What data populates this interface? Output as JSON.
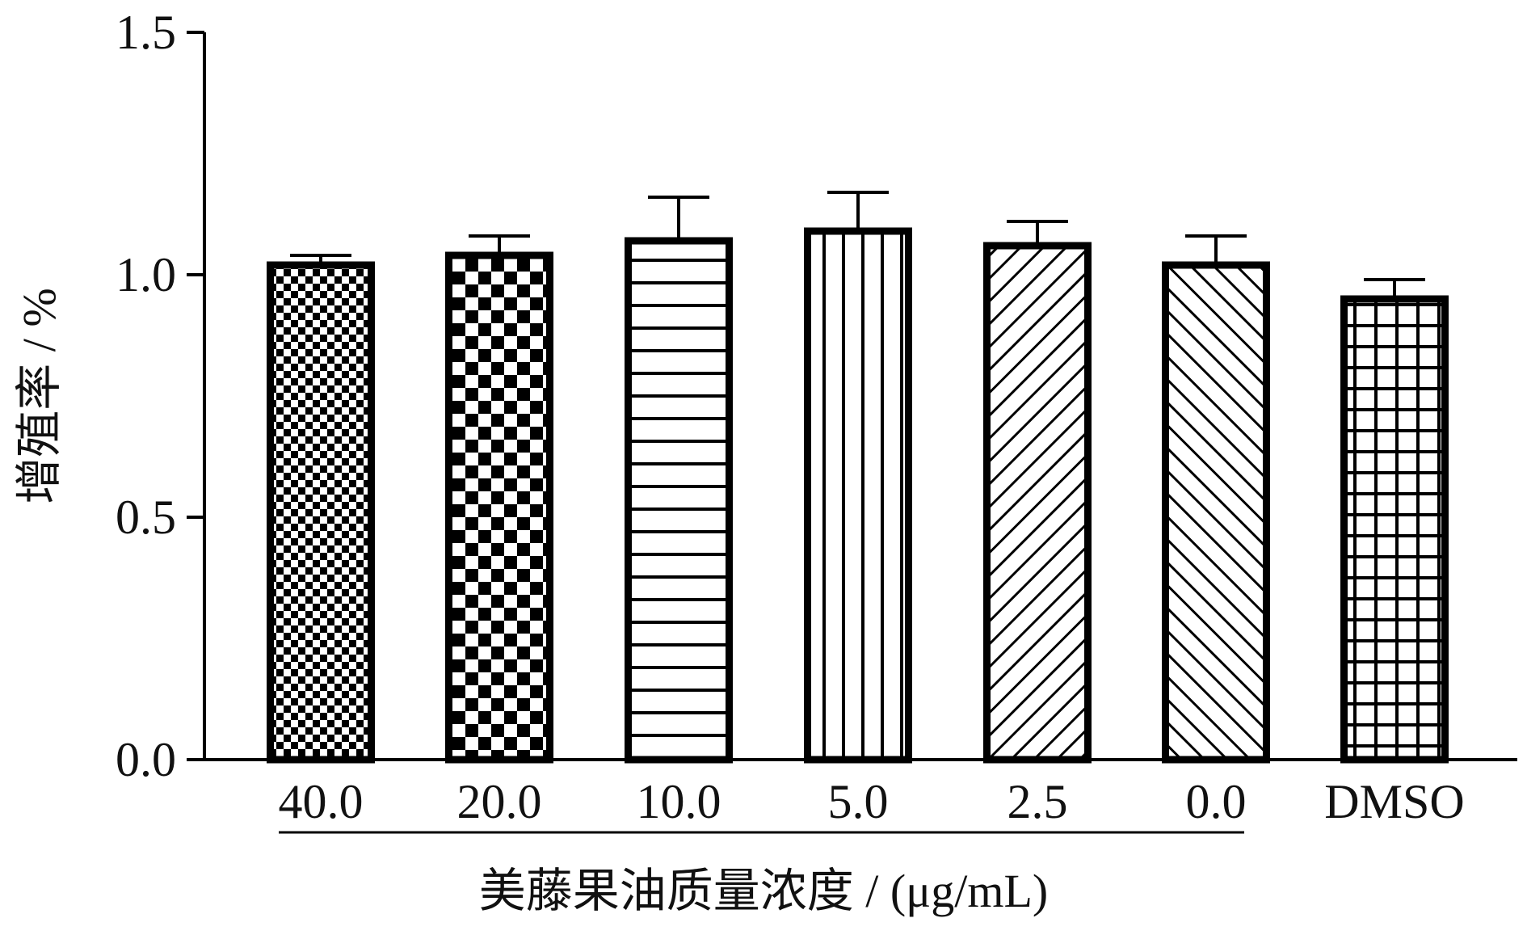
{
  "chart_data": {
    "type": "bar",
    "title": "",
    "categories": [
      "40.0",
      "20.0",
      "10.0",
      "5.0",
      "2.5",
      "0.0",
      "DMSO"
    ],
    "values": [
      1.02,
      1.04,
      1.07,
      1.09,
      1.06,
      1.02,
      0.95
    ],
    "errors": [
      0.02,
      0.04,
      0.09,
      0.08,
      0.05,
      0.06,
      0.04
    ],
    "patterns": [
      "fine-checker",
      "coarse-checker",
      "horizontal-lines",
      "vertical-lines",
      "diagonal-forward",
      "diagonal-backward",
      "grid"
    ],
    "ylim": [
      0,
      1.5
    ],
    "yticks": [
      "0.0",
      "0.5",
      "1.0",
      "1.5"
    ],
    "ylabel": "增殖率 / %",
    "xlabel": "美藤果油质量浓度 / (μg/mL)",
    "grid": false,
    "colors": {
      "ink": "#000000",
      "background": "#ffffff"
    }
  }
}
